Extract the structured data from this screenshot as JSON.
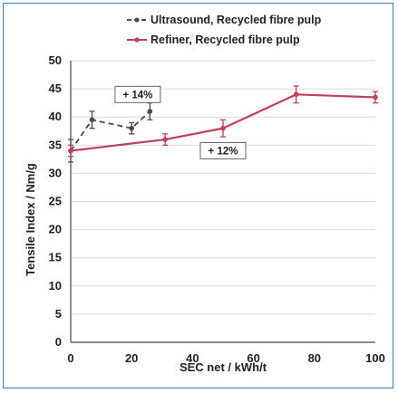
{
  "chart_data": {
    "type": "line",
    "xlabel": "SEC net / kWh/t",
    "ylabel": "Tensile Index / Nm/g",
    "xlim": [
      0,
      100
    ],
    "ylim": [
      0,
      50
    ],
    "x_ticks": [
      "0",
      "20",
      "40",
      "60",
      "80",
      "100"
    ],
    "y_ticks": [
      "0",
      "5",
      "10",
      "15",
      "20",
      "25",
      "30",
      "35",
      "40",
      "45",
      "50"
    ],
    "grid": "horizontal",
    "legend_position": "top",
    "series": [
      {
        "name": "Ultrasound, Recycled fibre pulp",
        "color": "#4a4a4a",
        "line_style": "dashed",
        "x": [
          0,
          7,
          20,
          26
        ],
        "y": [
          34,
          39.5,
          38,
          41
        ],
        "err": [
          2,
          1.5,
          1,
          1.5
        ]
      },
      {
        "name": "Refiner, Recycled fibre pulp",
        "color": "#c0405a",
        "line_style": "solid",
        "x": [
          0,
          31,
          50,
          74,
          100
        ],
        "y": [
          34,
          36,
          38,
          44,
          43.5
        ],
        "err": [
          1,
          1,
          1.5,
          1.5,
          1
        ]
      }
    ],
    "annotations": [
      {
        "text": "+ 14%",
        "x": 22,
        "y": 44
      },
      {
        "text": "+ 12%",
        "x": 50,
        "y": 34
      }
    ]
  }
}
